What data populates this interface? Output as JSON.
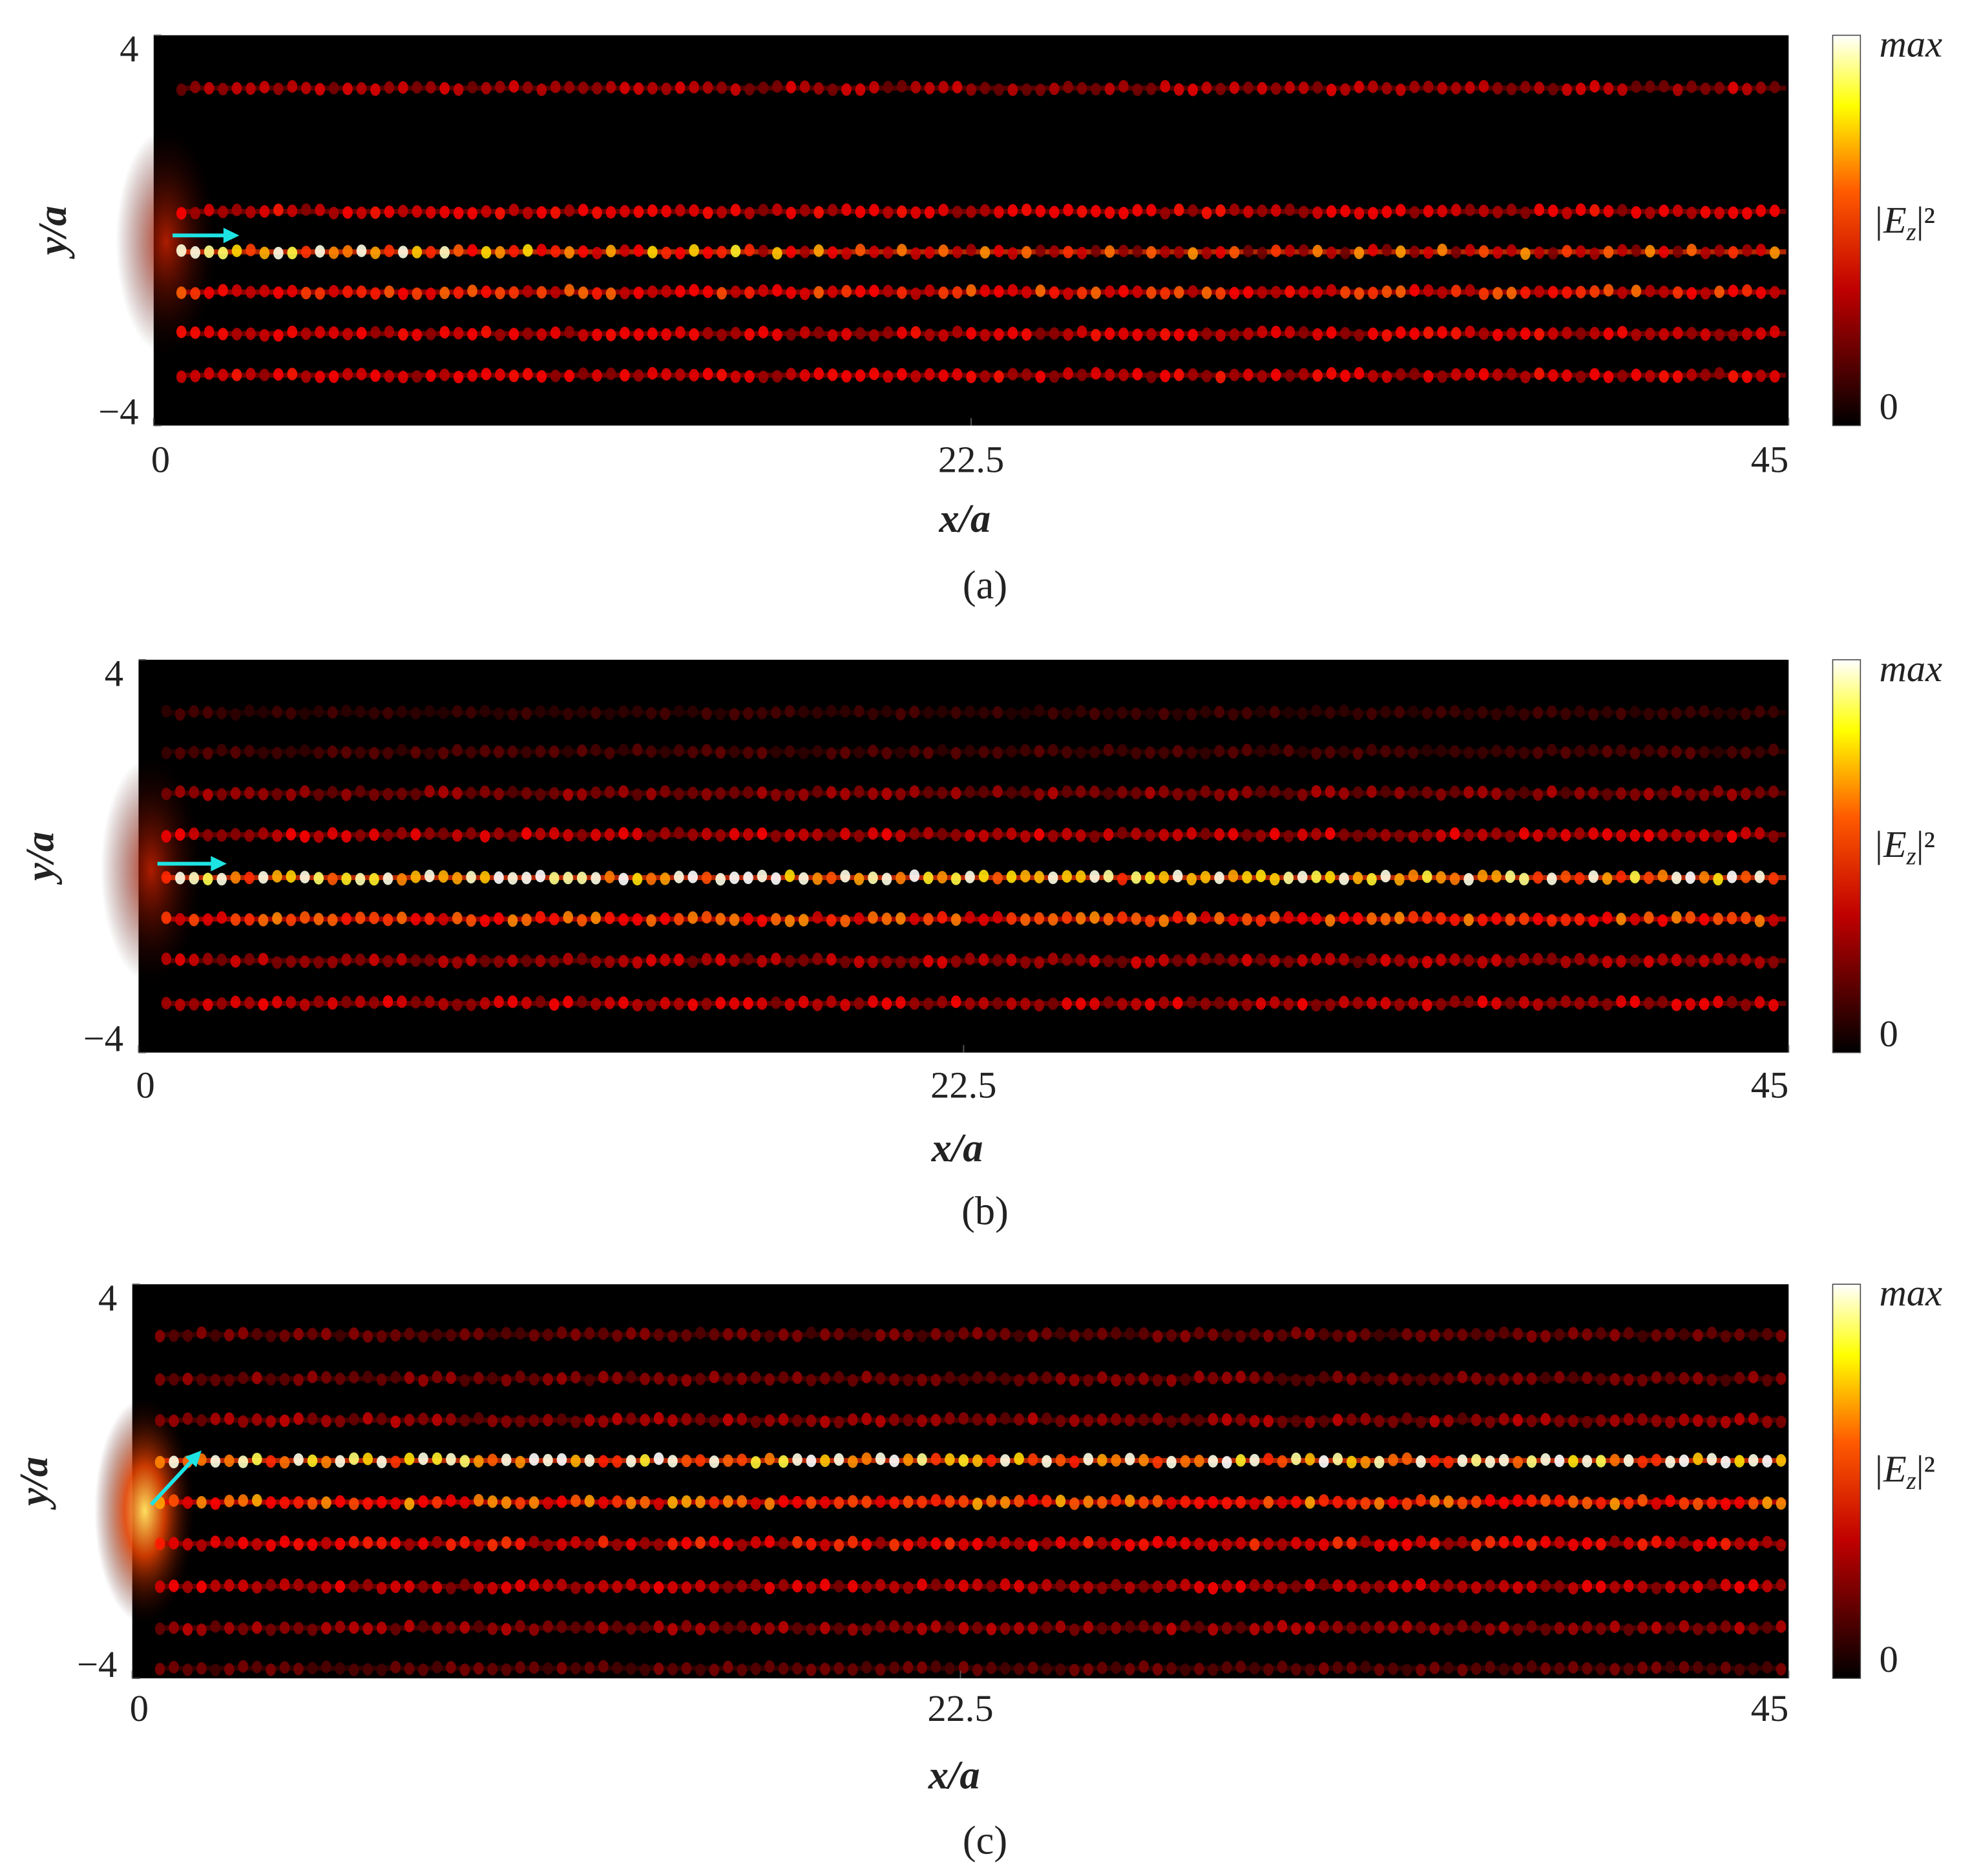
{
  "figure": {
    "panels": [
      {
        "label": "(a)",
        "xlabel": "x/a",
        "ylabel": "y/a",
        "xlim": [
          0,
          45
        ],
        "ylim": [
          -4,
          4
        ],
        "xticks": [
          0,
          22.5,
          45
        ],
        "yticks": [
          {
            "value": -4,
            "label": "−4"
          },
          4
        ],
        "colorbar": {
          "top": "max",
          "bottom": "0",
          "label_base": "|E",
          "label_sub": "z",
          "label_end": "|²"
        }
      },
      {
        "label": "(b)",
        "xlabel": "x/a",
        "ylabel": "y/a",
        "xlim": [
          0,
          45
        ],
        "ylim": [
          -4,
          4
        ],
        "xticks": [
          0,
          22.5,
          45
        ],
        "yticks": [
          {
            "value": -4,
            "label": "−4"
          },
          4
        ],
        "colorbar": {
          "top": "max",
          "bottom": "0",
          "label_base": "|E",
          "label_sub": "z",
          "label_end": "|²"
        }
      },
      {
        "label": "(c)",
        "xlabel": "x/a",
        "ylabel": "y/a",
        "xlim": [
          0,
          45
        ],
        "ylim": [
          -4,
          4
        ],
        "xticks": [
          0,
          22.5,
          45
        ],
        "yticks": [
          {
            "value": -4,
            "label": "−4"
          },
          4
        ],
        "colorbar": {
          "top": "max",
          "bottom": "0",
          "label_base": "|E",
          "label_sub": "z",
          "label_end": "|²"
        }
      }
    ]
  }
}
